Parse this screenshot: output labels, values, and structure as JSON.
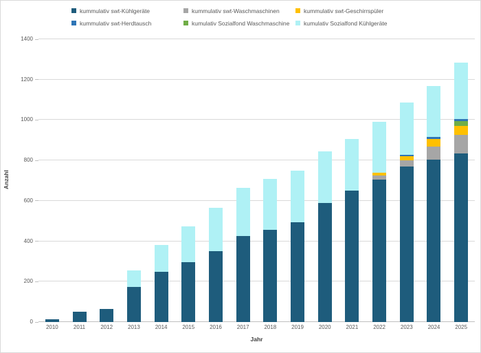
{
  "legend": {
    "items": [
      {
        "label": "kummulativ swt-Kühlgeräte",
        "color": "#1E5C7C"
      },
      {
        "label": "kummulativ swt-Waschmaschinen",
        "color": "#A6A6A6"
      },
      {
        "label": "kummulativ swt-Geschirrspüler",
        "color": "#FFC000"
      },
      {
        "label": "kummulativ swt-Herdtausch",
        "color": "#2E75B6"
      },
      {
        "label": "kumulativ Sozialfond Waschmaschine",
        "color": "#70AD47"
      },
      {
        "label": "kumulativ Sozialfond Kühlgeräte",
        "color": "#AFF1F5"
      }
    ]
  },
  "axes": {
    "x_title": "Jahr",
    "y_title": "Anzahl"
  },
  "chart_data": {
    "type": "bar",
    "stacked": true,
    "grid": true,
    "legend_position": "top",
    "xlabel": "Jahr",
    "ylabel": "Anzahl",
    "ylim": [
      0,
      1400
    ],
    "ytick_interval": 200,
    "categories": [
      "2010",
      "2011",
      "2012",
      "2013",
      "2014",
      "2015",
      "2016",
      "2017",
      "2018",
      "2019",
      "2020",
      "2021",
      "2022",
      "2023",
      "2024",
      "2025"
    ],
    "series": [
      {
        "name": "kummulativ swt-Kühlgeräte",
        "color": "#1E5C7C",
        "values": [
          15,
          50,
          65,
          175,
          250,
          295,
          350,
          425,
          455,
          495,
          590,
          650,
          705,
          770,
          805,
          835
        ]
      },
      {
        "name": "kummulativ swt-Waschmaschinen",
        "color": "#A6A6A6",
        "values": [
          0,
          0,
          0,
          0,
          0,
          0,
          0,
          0,
          0,
          0,
          0,
          0,
          20,
          30,
          65,
          90
        ]
      },
      {
        "name": "kummulativ swt-Geschirrspüler",
        "color": "#FFC000",
        "values": [
          0,
          0,
          0,
          0,
          0,
          0,
          0,
          0,
          0,
          0,
          0,
          0,
          15,
          20,
          35,
          45
        ]
      },
      {
        "name": "kumulativ Sozialfond Waschmaschine",
        "color": "#70AD47",
        "values": [
          0,
          0,
          0,
          0,
          0,
          0,
          0,
          0,
          0,
          0,
          0,
          0,
          0,
          0,
          0,
          25
        ]
      },
      {
        "name": "kummulativ swt-Herdtausch",
        "color": "#2E75B6",
        "values": [
          0,
          0,
          0,
          0,
          0,
          0,
          0,
          0,
          0,
          0,
          0,
          0,
          0,
          8,
          10,
          10
        ]
      },
      {
        "name": "kumulativ Sozialfond Kühlgeräte",
        "color": "#AFF1F5",
        "values": [
          0,
          0,
          0,
          80,
          130,
          180,
          215,
          240,
          255,
          255,
          255,
          255,
          250,
          260,
          255,
          280
        ]
      }
    ]
  }
}
